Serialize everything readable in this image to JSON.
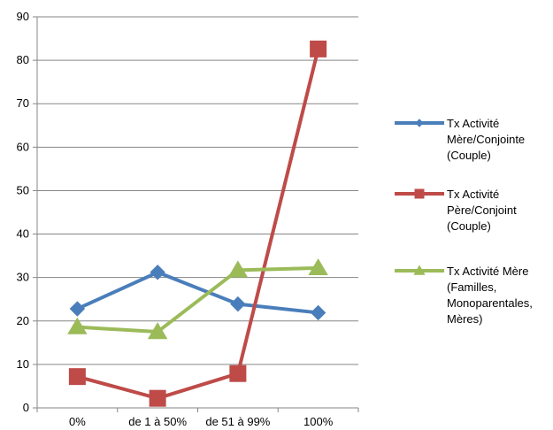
{
  "chart_data": {
    "type": "line",
    "categories": [
      "0%",
      "de 1 à 50%",
      "de 51 à 99%",
      "100%"
    ],
    "ylim": [
      0,
      90
    ],
    "yticks": [
      0,
      10,
      20,
      30,
      40,
      50,
      60,
      70,
      80,
      90
    ],
    "grid": true,
    "legend_position": "right",
    "series": [
      {
        "name": "Tx Activité Mère/Conjointe (Couple)",
        "legend_lines": [
          "Tx Activité",
          "Mère/Conjointe",
          "(Couple)"
        ],
        "color": "#4A7EBB",
        "marker": "diamond",
        "values": [
          22.8,
          31.2,
          23.9,
          21.9
        ]
      },
      {
        "name": "Tx Activité Père/Conjoint (Couple)",
        "legend_lines": [
          "Tx Activité",
          "Père/Conjoint",
          "(Couple)"
        ],
        "color": "#BE4B48",
        "marker": "square",
        "values": [
          7.2,
          2.2,
          7.9,
          82.6
        ]
      },
      {
        "name": "Tx Activité Mère (Familles, Monoparentales, Mères)",
        "legend_lines": [
          "Tx Activité Mère",
          "(Familles,",
          "Monoparentales,",
          "Mères)"
        ],
        "color": "#9BBB59",
        "marker": "triangle",
        "values": [
          18.6,
          17.5,
          31.7,
          32.2
        ]
      }
    ]
  }
}
